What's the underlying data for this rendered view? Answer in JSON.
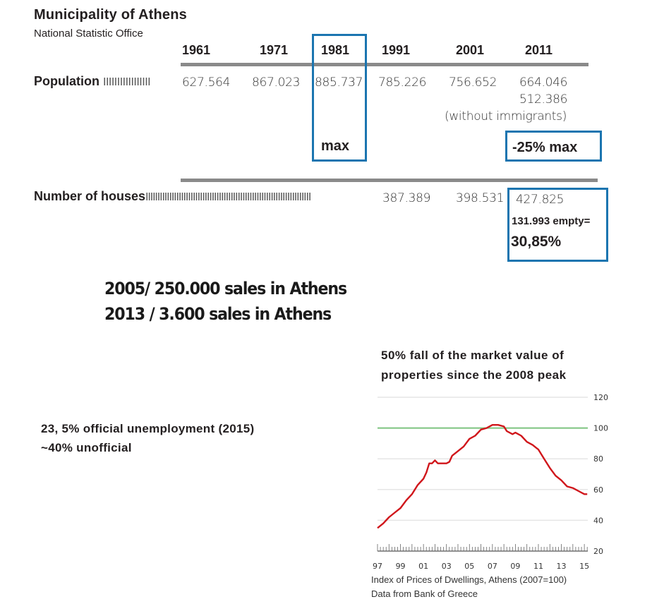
{
  "header": {
    "title": "Municipality  of Athens",
    "subtitle": "National Statistic Office"
  },
  "table": {
    "years": [
      "1961",
      "1971",
      "1981",
      "1991",
      "2001",
      "2011"
    ],
    "population": {
      "label": "Population",
      "leader": "IIIIIIIIIIIIIIIII",
      "values": [
        "627.564",
        "867.023",
        "885.737",
        "785.226",
        "756.652",
        "664.046"
      ],
      "extra_value": "512.386",
      "extra_note": "(without immigrants)"
    },
    "max_badge": "max",
    "decline_badge": "-25% max",
    "houses": {
      "label": "Number of houses",
      "leader": "IIIIIIIIIIIIIIIIIIIIIIIIIIIIIIIIIIIIIIIIIIIIIIIIIIIIIIIIIIIIIIIIIIIIII",
      "values": [
        "387.389",
        "398.531",
        "427.825"
      ],
      "empty_line": "131.993 empty=",
      "empty_pct": "30,85%"
    }
  },
  "sales": {
    "line1": "2005/  250.000 sales in Athens",
    "line2": "2013 / 3.600 sales in Athens"
  },
  "unemployment": {
    "line1": "23, 5% official unemployment (2015)",
    "line2": "~40% unofficial"
  },
  "colors": {
    "highlight_box": "#1b75b0",
    "rule": "#8a8a8a",
    "series_line": "#d0161b",
    "reference_line": "#7cc47f"
  },
  "chart_data": {
    "type": "line",
    "title": "50% fall of  the market value  of properties since the 2008 peak",
    "caption": "Index of Prices of Dwellings, Athens (2007=100)",
    "source": "Data from Bank of Greece",
    "xlabel": "",
    "ylabel": "",
    "xlim": [
      1997,
      2015.3
    ],
    "ylim": [
      20,
      120
    ],
    "yticks": [
      20,
      40,
      60,
      80,
      100,
      120
    ],
    "ytick_labels": [
      "20",
      "40",
      "60",
      "80",
      "100",
      "120"
    ],
    "xtick_labels": [
      "97",
      "99",
      "01",
      "03",
      "05",
      "07",
      "09",
      "11",
      "13",
      "15"
    ],
    "xtick_values": [
      1997,
      1999,
      2001,
      2003,
      2005,
      2007,
      2009,
      2011,
      2013,
      2015
    ],
    "grid": true,
    "reference_line": {
      "y": 100,
      "label": "2007=100"
    },
    "series": [
      {
        "name": "Index of Prices of Dwellings, Athens",
        "x": [
          1997.0,
          1997.5,
          1998.0,
          1998.5,
          1999.0,
          1999.5,
          2000.0,
          2000.5,
          2001.0,
          2001.25,
          2001.5,
          2001.75,
          2002.0,
          2002.25,
          2002.5,
          2003.0,
          2003.25,
          2003.5,
          2004.0,
          2004.5,
          2005.0,
          2005.5,
          2006.0,
          2006.5,
          2007.0,
          2007.5,
          2008.0,
          2008.25,
          2008.75,
          2009.0,
          2009.5,
          2010.0,
          2010.5,
          2011.0,
          2011.5,
          2012.0,
          2012.5,
          2013.0,
          2013.5,
          2014.0,
          2014.5,
          2015.0,
          2015.25
        ],
        "y": [
          35,
          38,
          42,
          45,
          48,
          53,
          57,
          63,
          67,
          71,
          77,
          77,
          79,
          77,
          77,
          77,
          78,
          82,
          85,
          88,
          93,
          95,
          99,
          100,
          102,
          102,
          101,
          98,
          96,
          97,
          95,
          91,
          89,
          86,
          80,
          74,
          69,
          66,
          62,
          61,
          59,
          57,
          57
        ]
      }
    ]
  }
}
